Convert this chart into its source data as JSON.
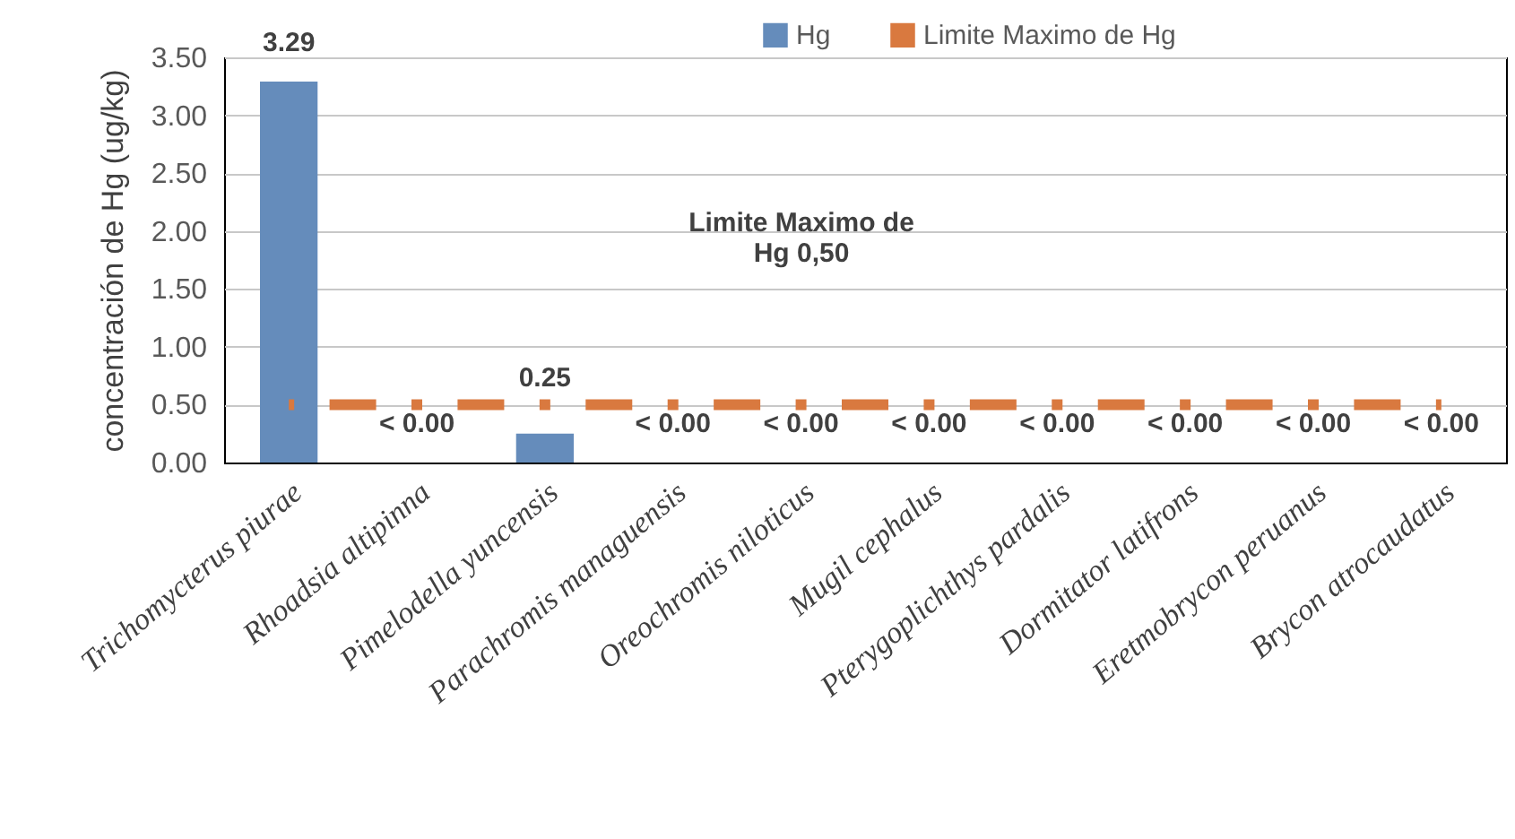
{
  "chart_data": {
    "type": "bar",
    "ylabel": "concentración de Hg (ug/kg)",
    "categories": [
      "Trichomycterus piurae",
      "Rhoadsia altipinna",
      "Pimelodella yuncensis",
      "Parachromis managuensis",
      "Oreochromis niloticus",
      "Mugil cephalus",
      "Pterygoplichthys pardalis",
      "Dormitator latifrons",
      "Eretmobrycon peruanus",
      "Brycon atrocaudatus"
    ],
    "series": [
      {
        "name": "Hg",
        "color": "#658cbb",
        "values": [
          3.29,
          0,
          0.25,
          0,
          0,
          0,
          0,
          0,
          0,
          0
        ],
        "value_labels": [
          "3.29",
          "< 0.00",
          "0.25",
          "< 0.00",
          "< 0.00",
          "< 0.00",
          "< 0.00",
          "< 0.00",
          "< 0.00",
          "< 0.00"
        ]
      },
      {
        "name": "Limite Maximo de Hg",
        "type": "line",
        "color": "#d9793f",
        "line_style": "dashed",
        "values": [
          0.5,
          0.5,
          0.5,
          0.5,
          0.5,
          0.5,
          0.5,
          0.5,
          0.5,
          0.5
        ]
      }
    ],
    "annotations": [
      "Limite Maximo de\nHg 0,50"
    ],
    "ylim": [
      0,
      3.5
    ],
    "yticks": [
      {
        "value": 0,
        "label": "0.00"
      },
      {
        "value": 0.5,
        "label": "0.50"
      },
      {
        "value": 1,
        "label": "1.00"
      },
      {
        "value": 1.5,
        "label": "1.50"
      },
      {
        "value": 2,
        "label": "2.00"
      },
      {
        "value": 2.5,
        "label": "2.50"
      },
      {
        "value": 3,
        "label": "3.00"
      },
      {
        "value": 3.5,
        "label": "3.50"
      }
    ],
    "grid": "y",
    "legend": "top"
  }
}
